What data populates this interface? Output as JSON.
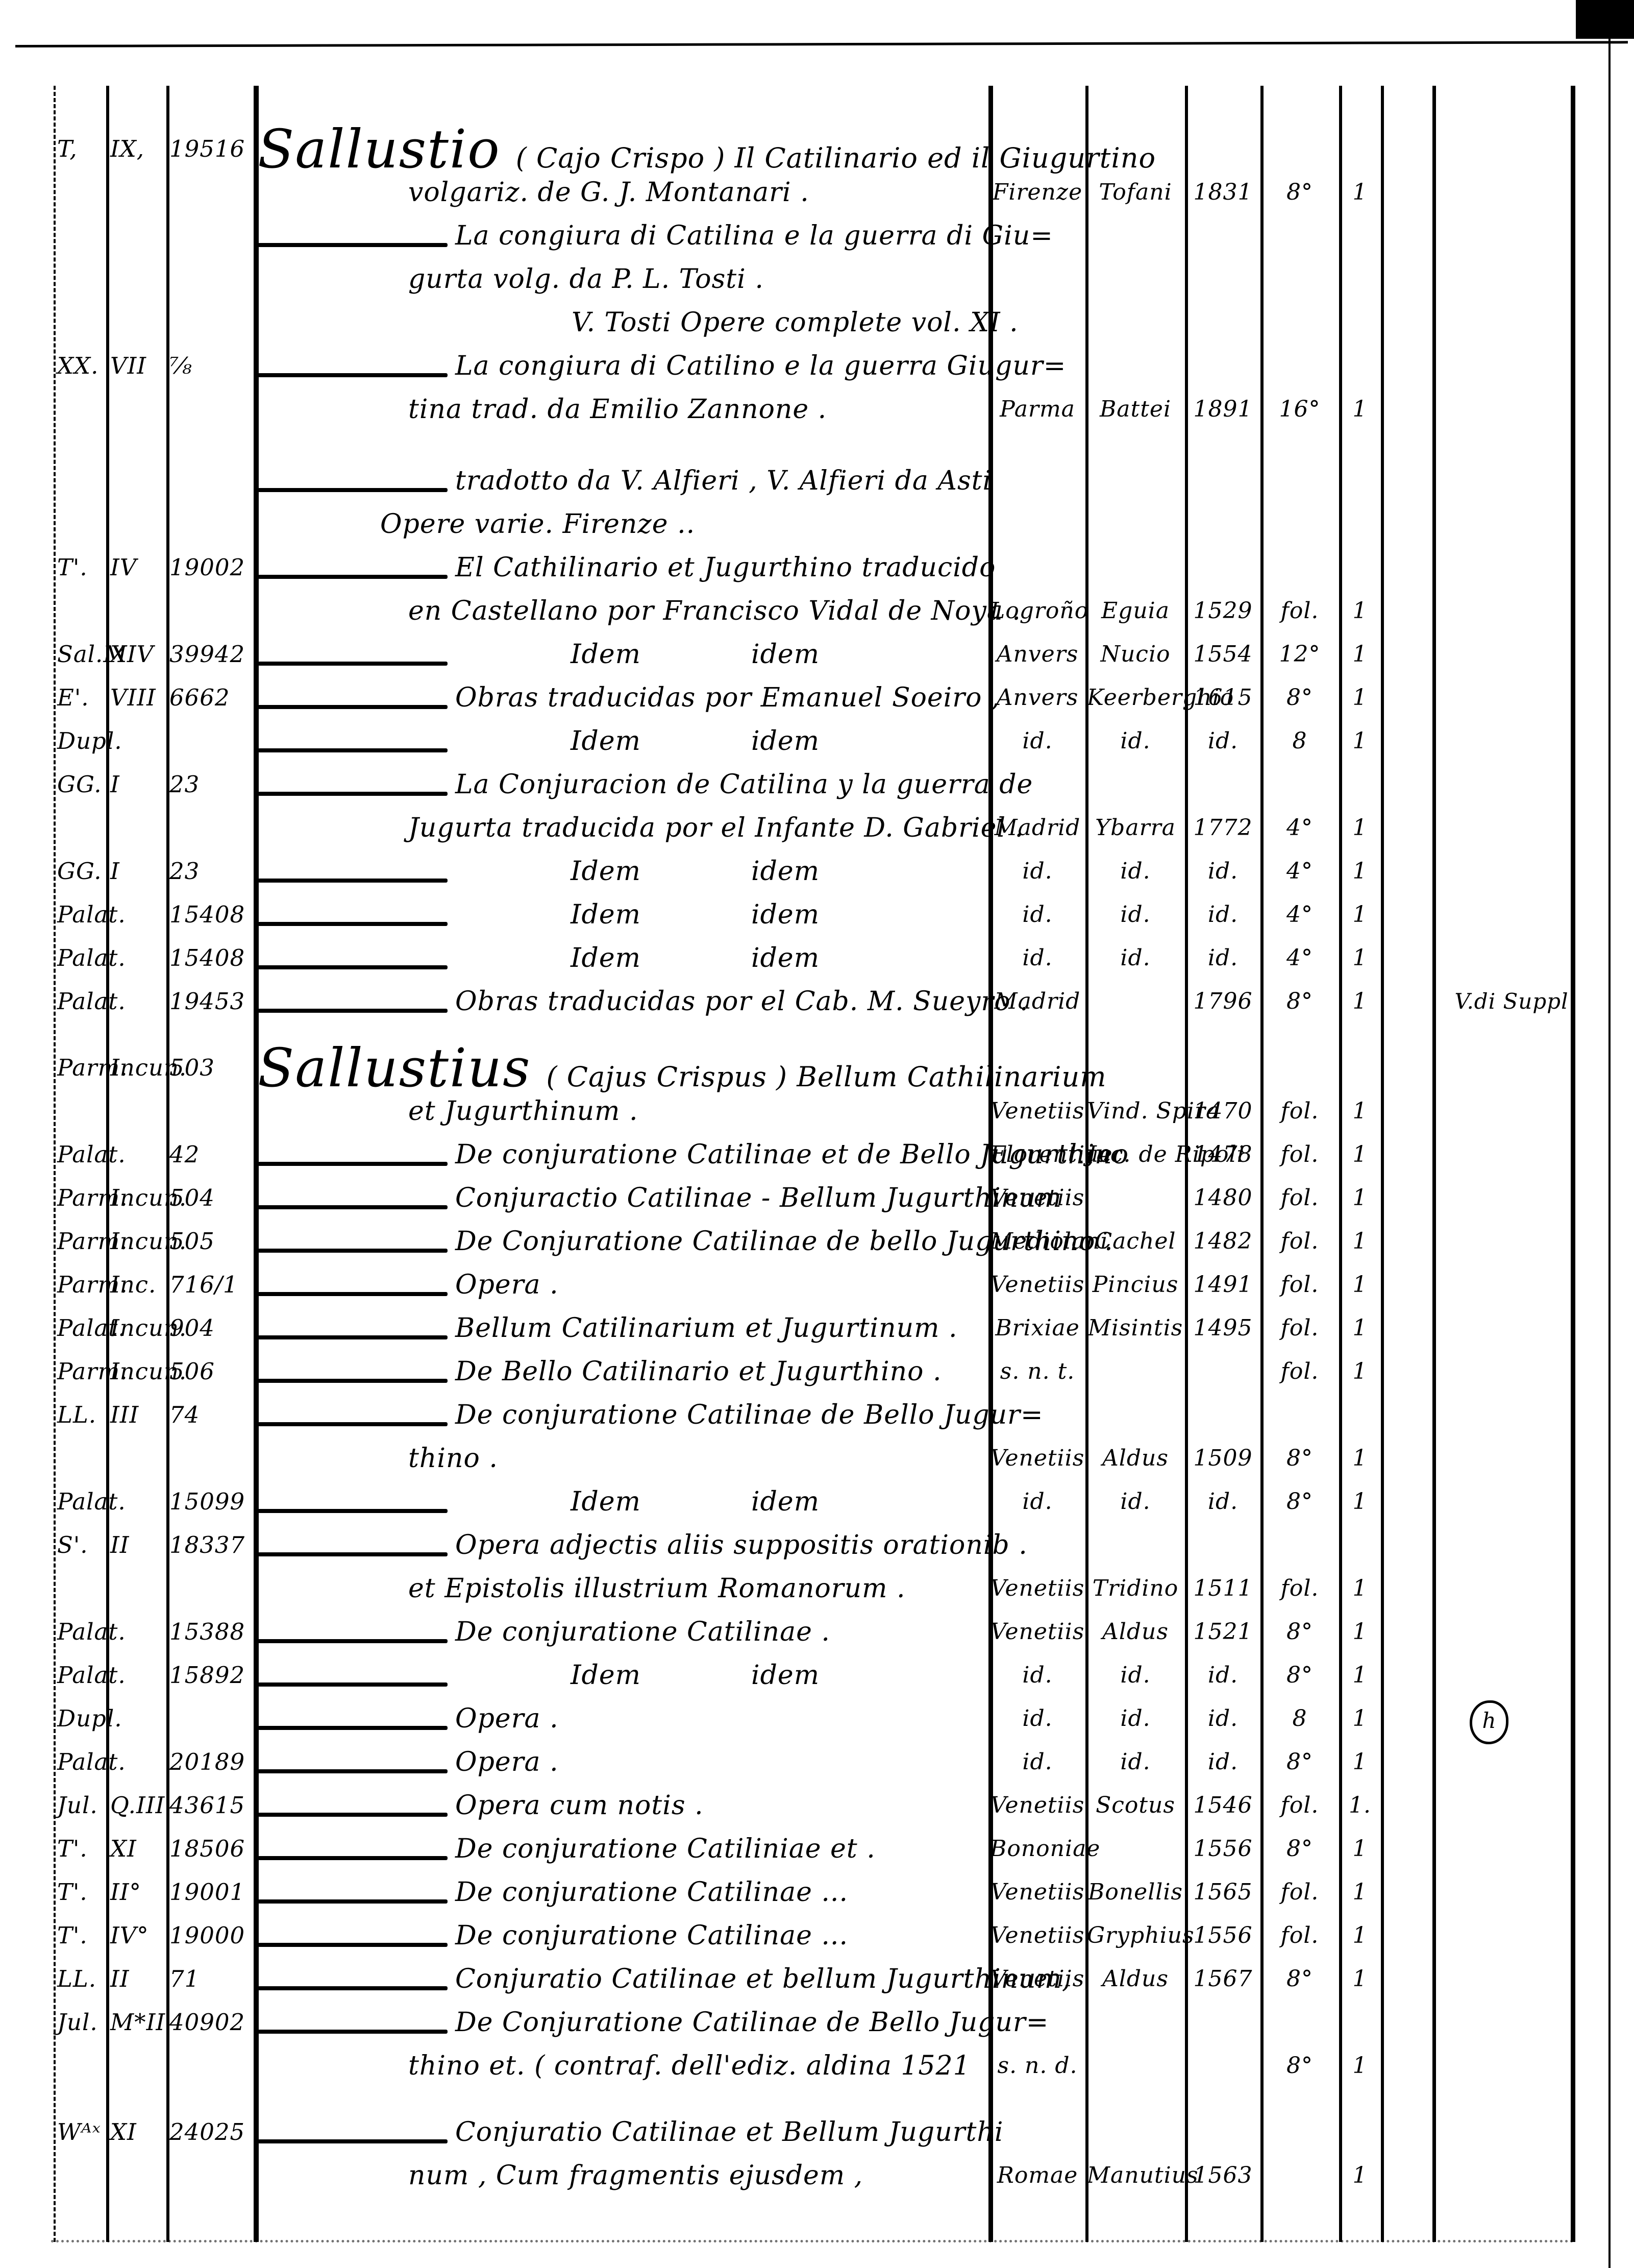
{
  "page": {
    "background": "#ffffff",
    "ink": "#000000"
  },
  "table": {
    "lines": [
      {
        "shelf": "T,",
        "series": "IX,",
        "number": "19516",
        "heading": true,
        "name": "Sallustio",
        "text": "( Cajo Crispo ) Il Catilinario ed il Giugurtino"
      },
      {
        "text": "volgariz. de G. J. Montanari .",
        "place": "Firenze",
        "printer": "Tofani",
        "year": "1831",
        "format": "8°",
        "copies": "1"
      },
      {
        "dash": true,
        "text": "La congiura di Catilina e la guerra di Giu="
      },
      {
        "text": "gurta volg. da P. L. Tosti ."
      },
      {
        "text": "V. Tosti Opere complete vol. XI ."
      },
      {
        "shelf": "XX.",
        "series": "VII",
        "number": "⅞",
        "dash": true,
        "text": "La congiura di Catilino e la guerra Giugur="
      },
      {
        "text": "tina trad. da Emilio Zannone .",
        "place": "Parma",
        "printer": "Battei",
        "year": "1891",
        "format": "16°",
        "copies": "1"
      },
      {
        "dash": true,
        "text": "tradotto da V. Alfieri , V. Alfieri da Asti"
      },
      {
        "text": "Opere varie. Firenze .."
      },
      {
        "shelf": "T'.",
        "series": "IV",
        "number": "19002",
        "dash": true,
        "text": "El Cathilinario et Jugurthino traducido"
      },
      {
        "text": "en Castellano por Francisco Vidal de Noya .",
        "place": "Logroño",
        "printer": "Eguia",
        "year": "1529",
        "format": "fol.",
        "copies": "1"
      },
      {
        "shelf": "Sal.M",
        "series": "XIV",
        "number": "39942",
        "dash": true,
        "idem": true,
        "text": "Idem",
        "text2": "idem",
        "place": "Anvers",
        "printer": "Nucio",
        "year": "1554",
        "format": "12°",
        "copies": "1"
      },
      {
        "shelf": "E'.",
        "series": "VIII",
        "number": "6662",
        "dash": true,
        "text": "Obras traducidas por Emanuel Soeiro ,",
        "place": "Anvers",
        "printer": "Keerberghio",
        "year": "1615",
        "format": "8°",
        "copies": "1"
      },
      {
        "shelf": "Dupl.",
        "dash": true,
        "idem": true,
        "text": "Idem",
        "text2": "idem",
        "place": "id.",
        "printer": "id.",
        "year": "id.",
        "format": "8",
        "copies": "1"
      },
      {
        "shelf": "GG.",
        "series": "I",
        "number": "23",
        "dash": true,
        "text": "La Conjuracion de Catilina y la guerra de"
      },
      {
        "text": "Jugurta traducida por el Infante D. Gabriel .",
        "place": "Madrid",
        "printer": "Ybarra",
        "year": "1772",
        "format": "4°",
        "copies": "1"
      },
      {
        "shelf": "GG.",
        "series": "I",
        "number": "23",
        "dash": true,
        "idem": true,
        "text": "Idem",
        "text2": "idem",
        "place": "id.",
        "printer": "id.",
        "year": "id.",
        "format": "4°",
        "copies": "1"
      },
      {
        "shelf": "Palat.",
        "number": "15408",
        "dash": true,
        "idem": true,
        "text": "Idem",
        "text2": "idem",
        "place": "id.",
        "printer": "id.",
        "year": "id.",
        "format": "4°",
        "copies": "1"
      },
      {
        "shelf": "Palat.",
        "number": "15408",
        "dash": true,
        "idem": true,
        "text": "Idem",
        "text2": "idem",
        "place": "id.",
        "printer": "id.",
        "year": "id.",
        "format": "4°",
        "copies": "1"
      },
      {
        "shelf": "Palat.",
        "number": "19453",
        "dash": true,
        "text": "Obras traducidas por el Cab. M. Sueyro .",
        "place": "Madrid",
        "year": "1796",
        "format": "8°",
        "copies": "1",
        "note": "V.di Suppl"
      },
      {
        "shelf": "Parm.",
        "series": "Incun.",
        "number": "503",
        "heading": true,
        "name": "Sallustius",
        "text": "( Cajus Crispus ) Bellum Cathilinarium"
      },
      {
        "text": "et Jugurthinum .",
        "place": "Venetiis",
        "printer": "Vind. Spira",
        "year": "1470",
        "format": "fol.",
        "copies": "1"
      },
      {
        "shelf": "Palat.",
        "number": "42",
        "dash": true,
        "text": "De conjuratione Catilinae et de Bello Jugurthino",
        "place": "Florentiae",
        "printer": "Jac. de Ripoli",
        "year": "1478",
        "format": "fol.",
        "copies": "1"
      },
      {
        "shelf": "Parm.",
        "series": "Incun.",
        "number": "504",
        "dash": true,
        "text": "Conjuractio Catilinae - Bellum Jugurthinum",
        "place": "Venetiis",
        "year": "1480",
        "format": "fol.",
        "copies": "1"
      },
      {
        "shelf": "Parm.",
        "series": "Incun.",
        "number": "505",
        "dash": true,
        "text": "De Conjuratione Catilinae de bello Jugurthino .",
        "place": "Mediolani",
        "printer": "Cachel",
        "year": "1482",
        "format": "fol.",
        "copies": "1"
      },
      {
        "shelf": "Parm.",
        "series": "Inc.",
        "number": "716/1",
        "dash": true,
        "text": "Opera .",
        "place": "Venetiis",
        "printer": "Pincius",
        "year": "1491",
        "format": "fol.",
        "copies": "1"
      },
      {
        "shelf": "Palat.",
        "series": "Incun.",
        "number": "904",
        "dash": true,
        "text": "Bellum Catilinarium et Jugurtinum .",
        "place": "Brixiae",
        "printer": "Misintis",
        "year": "1495",
        "format": "fol.",
        "copies": "1"
      },
      {
        "shelf": "Parm.",
        "series": "Incun.",
        "number": "506",
        "dash": true,
        "text": "De Bello Catilinario et Jugurthino .",
        "place": "s. n. t.",
        "format": "fol.",
        "copies": "1"
      },
      {
        "shelf": "LL.",
        "series": "III",
        "number": "74",
        "dash": true,
        "text": "De conjuratione Catilinae de Bello Jugur="
      },
      {
        "text": "thino .",
        "place": "Venetiis",
        "printer": "Aldus",
        "year": "1509",
        "format": "8°",
        "copies": "1"
      },
      {
        "shelf": "Palat.",
        "number": "15099",
        "dash": true,
        "idem": true,
        "text": "Idem",
        "text2": "idem",
        "place": "id.",
        "printer": "id.",
        "year": "id.",
        "format": "8°",
        "copies": "1"
      },
      {
        "shelf": "S'.",
        "series": "II",
        "number": "18337",
        "dash": true,
        "text": "Opera adjectis aliis suppositis orationib ."
      },
      {
        "text": "et Epistolis illustrium Romanorum .",
        "place": "Venetiis",
        "printer": "Tridino",
        "year": "1511",
        "format": "fol.",
        "copies": "1"
      },
      {
        "shelf": "Palat.",
        "number": "15388",
        "dash": true,
        "text": "De conjuratione Catilinae .",
        "place": "Venetiis",
        "printer": "Aldus",
        "year": "1521",
        "format": "8°",
        "copies": "1"
      },
      {
        "shelf": "Palat.",
        "number": "15892",
        "dash": true,
        "idem": true,
        "text": "Idem",
        "text2": "idem",
        "place": "id.",
        "printer": "id.",
        "year": "id.",
        "format": "8°",
        "copies": "1"
      },
      {
        "shelf": "Dupl.",
        "dash": true,
        "text": "Opera .",
        "place": "id.",
        "printer": "id.",
        "year": "id.",
        "format": "8",
        "copies": "1",
        "note_circled": "h"
      },
      {
        "shelf": "Palat.",
        "number": "20189",
        "dash": true,
        "text": "Opera .",
        "place": "id.",
        "printer": "id.",
        "year": "id.",
        "format": "8°",
        "copies": "1"
      },
      {
        "shelf": "Jul.",
        "series": "Q.III",
        "number": "43615",
        "dash": true,
        "text": "Opera cum notis .",
        "place": "Venetiis",
        "printer": "Scotus",
        "year": "1546",
        "format": "fol.",
        "copies": "1."
      },
      {
        "shelf": "T'.",
        "series": "XI",
        "number": "18506",
        "dash": true,
        "text": "De conjuratione Catiliniae et .",
        "place": "Bononiae",
        "year": "1556",
        "format": "8°",
        "copies": "1"
      },
      {
        "shelf": "T'.",
        "series": "II°",
        "number": "19001",
        "dash": true,
        "text": "De conjuratione Catilinae ...",
        "place": "Venetiis",
        "printer": "Bonellis",
        "year": "1565",
        "format": "fol.",
        "copies": "1"
      },
      {
        "shelf": "T'.",
        "series": "IV°",
        "number": "19000",
        "dash": true,
        "text": "De conjuratione Catilinae ...",
        "place": "Venetiis",
        "printer": "Gryphius",
        "year": "1556",
        "format": "fol.",
        "copies": "1"
      },
      {
        "shelf": "LL.",
        "series": "II",
        "number": "71",
        "dash": true,
        "text": "Conjuratio Catilinae et bellum Jugurthinum,",
        "place": "Venetiis",
        "printer": "Aldus",
        "year": "1567",
        "format": "8°",
        "copies": "1"
      },
      {
        "shelf": "Jul.",
        "series": "M*II",
        "number": "40902",
        "dash": true,
        "text": "De Conjuratione Catilinae de Bello Jugur="
      },
      {
        "text": "thino et. ( contraf. dell'ediz. aldina 1521",
        "place": "s. n. d.",
        "format": "8°",
        "copies": "1"
      },
      {
        "shelf": "Wᴬˣ",
        "series": "XI",
        "number": "24025",
        "dash": true,
        "text": "Conjuratio Catilinae et Bellum Jugurthi"
      },
      {
        "text": "num , Cum fragmentis ejusdem ,",
        "place": "Romae",
        "printer": "Manutius",
        "year": "1563",
        "copies": "1"
      }
    ]
  }
}
